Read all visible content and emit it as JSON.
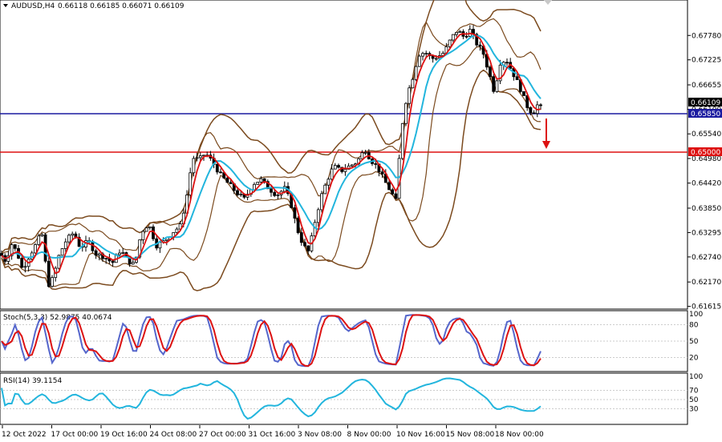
{
  "header": {
    "symbol": "AUDUSD,H4",
    "ohlc": "0.66118 0.66185 0.66071 0.66109"
  },
  "chart_data": {
    "type": "candlestick",
    "symbol": "AUDUSD",
    "timeframe": "H4",
    "price_axis": {
      "range": [
        0.6159,
        0.6855
      ],
      "ticks": [
        "0.67780",
        "0.67225",
        "0.66655",
        "0.66100",
        "0.65540",
        "0.64980",
        "0.64420",
        "0.63850",
        "0.63295",
        "0.62740",
        "0.62170",
        "0.61615"
      ]
    },
    "time_axis": {
      "labels": [
        "12 Oct 2022",
        "17 Oct 00:00",
        "19 Oct 16:00",
        "24 Oct 08:00",
        "27 Oct 00:00",
        "31 Oct 16:00",
        "3 Nov 08:00",
        "8 Nov 00:00",
        "10 Nov 16:00",
        "15 Nov 08:00",
        "18 Nov 00:00"
      ]
    },
    "current_price": "0.66109",
    "levels": [
      {
        "price": 0.6585,
        "label": "0.65850",
        "color": "#1a1aa0"
      },
      {
        "price": 0.65,
        "label": "0.65000",
        "color": "#dd1111"
      }
    ],
    "arrow": {
      "direction": "down",
      "color": "#dd1111"
    },
    "keyframes": [
      [
        0,
        0.6282
      ],
      [
        7,
        0.6265
      ],
      [
        15,
        0.6305
      ],
      [
        22,
        0.628
      ],
      [
        28,
        0.6245
      ],
      [
        36,
        0.6275
      ],
      [
        44,
        0.63
      ],
      [
        52,
        0.633
      ],
      [
        60,
        0.621
      ],
      [
        66,
        0.6225
      ],
      [
        74,
        0.628
      ],
      [
        82,
        0.631
      ],
      [
        92,
        0.633
      ],
      [
        100,
        0.6295
      ],
      [
        110,
        0.631
      ],
      [
        120,
        0.628
      ],
      [
        130,
        0.6275
      ],
      [
        140,
        0.626
      ],
      [
        150,
        0.629
      ],
      [
        160,
        0.6265
      ],
      [
        168,
        0.6255
      ],
      [
        176,
        0.633
      ],
      [
        185,
        0.635
      ],
      [
        195,
        0.63
      ],
      [
        205,
        0.631
      ],
      [
        215,
        0.633
      ],
      [
        225,
        0.6345
      ],
      [
        233,
        0.6415
      ],
      [
        240,
        0.65
      ],
      [
        248,
        0.6495
      ],
      [
        256,
        0.651
      ],
      [
        265,
        0.649
      ],
      [
        275,
        0.646
      ],
      [
        285,
        0.644
      ],
      [
        295,
        0.642
      ],
      [
        305,
        0.6405
      ],
      [
        315,
        0.644
      ],
      [
        325,
        0.645
      ],
      [
        335,
        0.643
      ],
      [
        345,
        0.6415
      ],
      [
        355,
        0.643
      ],
      [
        362,
        0.64
      ],
      [
        370,
        0.634
      ],
      [
        378,
        0.63
      ],
      [
        385,
        0.6285
      ],
      [
        392,
        0.635
      ],
      [
        400,
        0.641
      ],
      [
        408,
        0.645
      ],
      [
        416,
        0.648
      ],
      [
        425,
        0.647
      ],
      [
        435,
        0.648
      ],
      [
        445,
        0.649
      ],
      [
        455,
        0.652
      ],
      [
        462,
        0.6495
      ],
      [
        470,
        0.648
      ],
      [
        480,
        0.6445
      ],
      [
        488,
        0.642
      ],
      [
        494,
        0.64
      ],
      [
        500,
        0.656
      ],
      [
        507,
        0.664
      ],
      [
        514,
        0.668
      ],
      [
        522,
        0.6735
      ],
      [
        530,
        0.674
      ],
      [
        538,
        0.6725
      ],
      [
        546,
        0.673
      ],
      [
        554,
        0.674
      ],
      [
        562,
        0.677
      ],
      [
        570,
        0.679
      ],
      [
        578,
        0.6775
      ],
      [
        586,
        0.679
      ],
      [
        594,
        0.676
      ],
      [
        602,
        0.674
      ],
      [
        610,
        0.669
      ],
      [
        616,
        0.665
      ],
      [
        624,
        0.672
      ],
      [
        632,
        0.672
      ],
      [
        640,
        0.669
      ],
      [
        648,
        0.666
      ],
      [
        656,
        0.662
      ],
      [
        664,
        0.66
      ],
      [
        670,
        0.662
      ],
      [
        676,
        0.6611
      ]
    ],
    "indicators": {
      "bollinger_outer": {
        "color": "#7b4a1e"
      },
      "bollinger_inner": {
        "color": "#7b4a1e"
      },
      "ma_fast": {
        "color": "#dd1111"
      },
      "ma_slow": {
        "color": "#22b5dd"
      }
    }
  },
  "stoch": {
    "label": "Stoch(5,3,3) 52.9875 40.0674",
    "levels": [
      "80",
      "50",
      "20"
    ],
    "ticks": [
      "100",
      "80",
      "50",
      "20",
      "0"
    ],
    "main_color": "#5566cc",
    "signal_color": "#dd1111",
    "main_end": 52.99,
    "signal_end": 40.07
  },
  "rsi": {
    "label": "RSI(14) 39.1154",
    "ticks": [
      "100",
      "70",
      "50",
      "30",
      "0"
    ],
    "color": "#22b5dd",
    "end": 39.12
  }
}
